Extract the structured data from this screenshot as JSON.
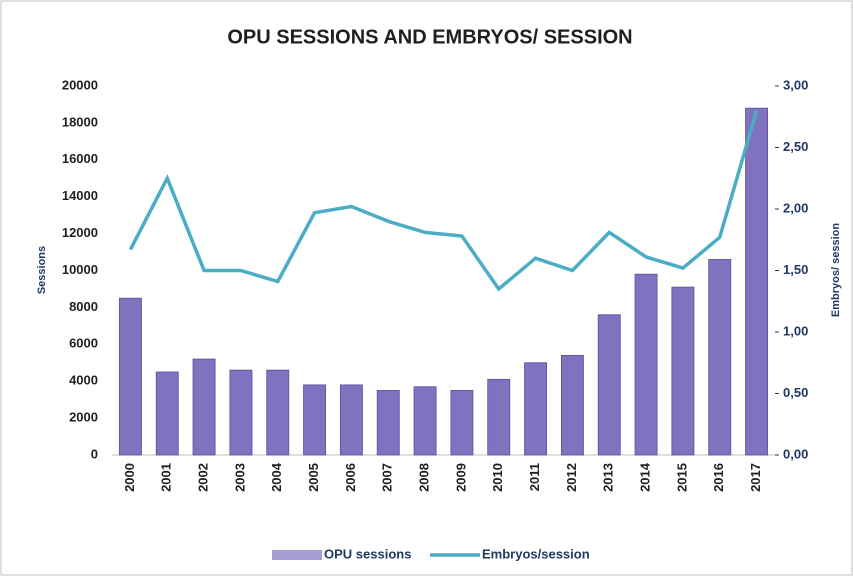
{
  "chart_data": {
    "type": "bar_line",
    "title": "OPU SESSIONS AND EMBRYOS/ SESSION",
    "ylabel": "Sessions",
    "y2label": "Embryos/ session",
    "categories": [
      "2000",
      "2001",
      "2002",
      "2003",
      "2004",
      "2005",
      "2006",
      "2007",
      "2008",
      "2009",
      "2010",
      "2011",
      "2012",
      "2013",
      "2014",
      "2015",
      "2016",
      "2017"
    ],
    "series": [
      {
        "name": "OPU sessions",
        "kind": "bar",
        "color": "#7f73c0",
        "axis": "y",
        "values": [
          8500,
          4500,
          5200,
          4600,
          4600,
          3800,
          3800,
          3500,
          3700,
          3500,
          4100,
          5000,
          5400,
          7600,
          9800,
          9100,
          10600,
          18800
        ]
      },
      {
        "name": "Embryos/session",
        "kind": "line",
        "color": "#4bacc6",
        "axis": "y2",
        "values": [
          1.67,
          2.25,
          1.5,
          1.5,
          1.41,
          1.97,
          2.02,
          1.9,
          1.81,
          1.78,
          1.35,
          1.6,
          1.5,
          1.81,
          1.61,
          1.52,
          1.77,
          2.8
        ]
      }
    ],
    "ylim": [
      0,
      20000
    ],
    "yticks": [
      0,
      2000,
      4000,
      6000,
      8000,
      10000,
      12000,
      14000,
      16000,
      18000,
      20000
    ],
    "y2lim": [
      0,
      3
    ],
    "y2ticks": [
      {
        "value": 0,
        "label": "0,00"
      },
      {
        "value": 0.5,
        "label": "0,50"
      },
      {
        "value": 1,
        "label": "1,00"
      },
      {
        "value": 1.5,
        "label": "1,50"
      },
      {
        "value": 2,
        "label": "2,00"
      },
      {
        "value": 2.5,
        "label": "2,50"
      },
      {
        "value": 3,
        "label": "3,00"
      }
    ],
    "grid": false,
    "legend": "bottom"
  }
}
